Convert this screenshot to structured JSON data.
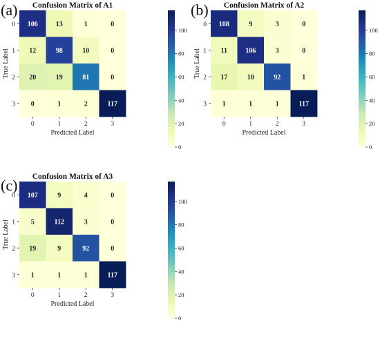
{
  "figure": {
    "panels": [
      {
        "letter": "(a)"
      },
      {
        "letter": "(b)"
      },
      {
        "letter": "(c)"
      }
    ]
  },
  "chart_data": [
    {
      "type": "heatmap",
      "title": "Confusion Matrix of A1",
      "xlabel": "Predicted Label",
      "ylabel": "True Label",
      "x_ticks": [
        "0",
        "1",
        "2",
        "3"
      ],
      "y_ticks": [
        "0",
        "1",
        "2",
        "3"
      ],
      "values": [
        [
          106,
          13,
          1,
          0
        ],
        [
          12,
          98,
          10,
          0
        ],
        [
          20,
          19,
          81,
          0
        ],
        [
          0,
          1,
          2,
          117
        ]
      ],
      "colorbar": {
        "ticks": [
          "0",
          "20",
          "40",
          "60",
          "80",
          "100"
        ],
        "range": [
          0,
          117
        ]
      },
      "colormap": [
        "#ffffd9",
        "#edf8b1",
        "#c7e9b4",
        "#7fcdbb",
        "#41b6c4",
        "#1d91c0",
        "#225ea8",
        "#253494",
        "#081d58"
      ]
    },
    {
      "type": "heatmap",
      "title": "Confusion Matrix of A2",
      "xlabel": "Predicted Label",
      "ylabel": "True Label",
      "x_ticks": [
        "0",
        "1",
        "2",
        "3"
      ],
      "y_ticks": [
        "0",
        "1",
        "2",
        "3"
      ],
      "values": [
        [
          108,
          9,
          3,
          0
        ],
        [
          11,
          106,
          3,
          0
        ],
        [
          17,
          10,
          92,
          1
        ],
        [
          1,
          1,
          1,
          117
        ]
      ],
      "colorbar": {
        "ticks": [
          "0",
          "20",
          "40",
          "60",
          "80",
          "100"
        ],
        "range": [
          0,
          117
        ]
      },
      "colormap": [
        "#ffffd9",
        "#edf8b1",
        "#c7e9b4",
        "#7fcdbb",
        "#41b6c4",
        "#1d91c0",
        "#225ea8",
        "#253494",
        "#081d58"
      ]
    },
    {
      "type": "heatmap",
      "title": "Confusion Matrix of A3",
      "xlabel": "Predicted Label",
      "ylabel": "True Label",
      "x_ticks": [
        "0",
        "1",
        "2",
        "3"
      ],
      "y_ticks": [
        "0",
        "1",
        "2",
        "3"
      ],
      "values": [
        [
          107,
          9,
          4,
          0
        ],
        [
          5,
          112,
          3,
          0
        ],
        [
          19,
          9,
          92,
          0
        ],
        [
          1,
          1,
          1,
          117
        ]
      ],
      "colorbar": {
        "ticks": [
          "0",
          "20",
          "40",
          "60",
          "80",
          "100"
        ],
        "range": [
          0,
          117
        ]
      },
      "colormap": [
        "#ffffd9",
        "#edf8b1",
        "#c7e9b4",
        "#7fcdbb",
        "#41b6c4",
        "#1d91c0",
        "#225ea8",
        "#253494",
        "#081d58"
      ]
    }
  ]
}
